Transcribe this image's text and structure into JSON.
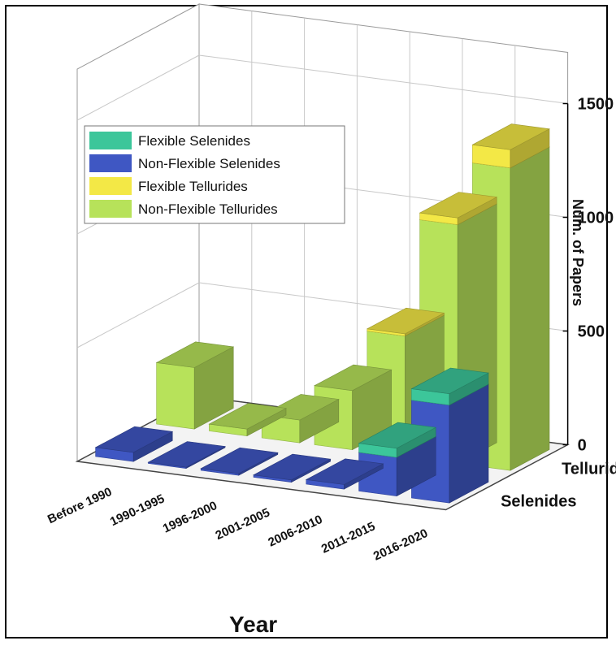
{
  "chart_data": {
    "type": "bar",
    "variant": "3d-grouped",
    "categories": [
      "Before 1990",
      "1990-1995",
      "1996-2000",
      "2001-2005",
      "2006-2010",
      "2011-2015",
      "2016-2020"
    ],
    "rows": [
      "Tellurides",
      "Selenides"
    ],
    "series": [
      {
        "name": "Flexible Selenides",
        "row": "Selenides",
        "stack": "top",
        "color": "#3cc69a",
        "values": [
          0,
          0,
          0,
          0,
          0,
          40,
          50
        ]
      },
      {
        "name": "Non-Flexible Selenides",
        "row": "Selenides",
        "stack": "bottom",
        "color": "#3f57c3",
        "values": [
          40,
          5,
          8,
          10,
          20,
          170,
          430
        ]
      },
      {
        "name": "Flexible Tellurides",
        "row": "Tellurides",
        "stack": "top",
        "color": "#f3e846",
        "values": [
          0,
          0,
          0,
          0,
          10,
          30,
          80
        ]
      },
      {
        "name": "Non-Flexible Tellurides",
        "row": "Tellurides",
        "stack": "bottom",
        "color": "#b7e25a",
        "values": [
          270,
          30,
          100,
          260,
          530,
          1050,
          1330
        ]
      }
    ],
    "zlabel": "Num. of Papers",
    "xlabel": "Year",
    "zlim": [
      0,
      1500
    ],
    "zticks": [
      0,
      500,
      1000,
      1500
    ],
    "legend_position": "top-left",
    "grid": true
  }
}
